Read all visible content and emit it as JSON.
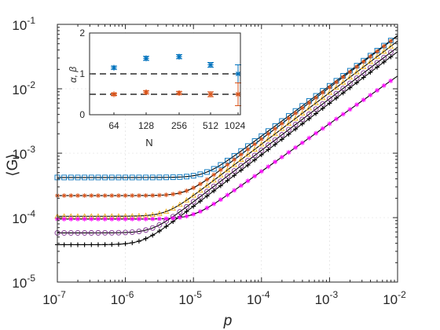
{
  "chart_data": [
    {
      "type": "scatter",
      "xlabel": "p",
      "ylabel": "⟨G⟩",
      "xscale": "log",
      "yscale": "log",
      "xlim": [
        1e-07,
        0.01
      ],
      "ylim": [
        1e-05,
        0.1
      ],
      "grid": false,
      "xtick_labels": [
        {
          "base": "10",
          "exp": "-7"
        },
        {
          "base": "10",
          "exp": "-6"
        },
        {
          "base": "10",
          "exp": "-5"
        },
        {
          "base": "10",
          "exp": "-4"
        },
        {
          "base": "10",
          "exp": "-3"
        },
        {
          "base": "10",
          "exp": "-2"
        }
      ],
      "ytick_labels": [
        {
          "base": "10",
          "exp": "-5"
        },
        {
          "base": "10",
          "exp": "-4"
        },
        {
          "base": "10",
          "exp": "-3"
        },
        {
          "base": "10",
          "exp": "-2"
        },
        {
          "base": "10",
          "exp": "-1"
        }
      ],
      "series": [
        {
          "marker": "square",
          "color": "#0072BD",
          "plateau": 0.00042,
          "knee": 1.5e-05,
          "slope": 0.78
        },
        {
          "marker": "asterisk",
          "color": "#D95319",
          "plateau": 0.00022,
          "knee": 8e-06,
          "slope": 0.8
        },
        {
          "marker": "triangle",
          "color": "#EDB120",
          "plateau": 0.000105,
          "knee": 4e-06,
          "slope": 0.8
        },
        {
          "marker": "circle",
          "color": "#7E2F8E",
          "plateau": 5.8e-05,
          "knee": 2.5e-06,
          "slope": 0.8
        },
        {
          "marker": "plus",
          "color": "#000000",
          "plateau": 3.8e-05,
          "knee": 1.8e-06,
          "slope": 0.8
        },
        {
          "marker": "asterisk",
          "color": "#FF00FF",
          "plateau": 9.5e-05,
          "knee": 1e-05,
          "slope": 0.74
        }
      ]
    },
    {
      "type": "errorbar",
      "xlabel": "N",
      "ylabel": "α, β",
      "categories": [
        "64",
        "128",
        "256",
        "512",
        "1024"
      ],
      "ylim": [
        0,
        2
      ],
      "ytick_labels": [
        "0",
        "1",
        "2"
      ],
      "reference_lines": [
        1,
        0.5
      ],
      "series": [
        {
          "name": "alpha",
          "color": "#0072BD",
          "values": [
            1.15,
            1.38,
            1.42,
            1.22,
            1.0
          ],
          "errors": [
            0.04,
            0.05,
            0.05,
            0.06,
            0.22
          ]
        },
        {
          "name": "beta",
          "color": "#D95319",
          "values": [
            0.5,
            0.55,
            0.53,
            0.5,
            0.5
          ],
          "errors": [
            0.03,
            0.04,
            0.04,
            0.06,
            0.28
          ]
        }
      ]
    }
  ]
}
